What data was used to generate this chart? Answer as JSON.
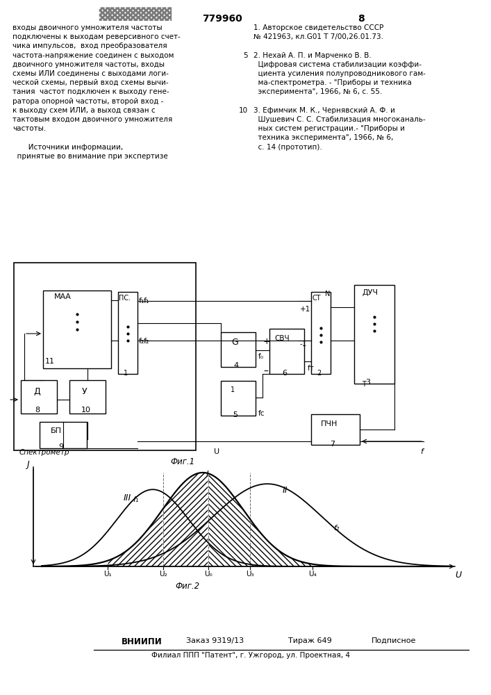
{
  "page_number": "779960",
  "page_num_right": "8",
  "left_text": [
    "входы двоичного умножителя частоты",
    "подключены к выходам реверсивного счет-",
    "чика импульсов,  вход преобразователя",
    "частота-напряжение соединен с выходом",
    "двоичного умножителя частоты, входы",
    "схемы ИЛИ соединены с выходами логи-",
    "ческой схемы, первый вход схемы вычи-",
    "тания  частот подключен к выходу гене-",
    "ратора опорной частоты, второй вход -",
    "к выходу схем ИЛИ, а выход связан с",
    "тактовым входом двоичного умножителя",
    "частоты.",
    "",
    "       Источники информации,",
    "  принятые во внимание при экспертизе"
  ],
  "right_lines": [
    "1. Авторское свидетельство СССР",
    "№ 421963, кл.G01 T 7/00,26.01.73.",
    "",
    "2. Нехай А. П. и Марченко В. В.",
    "Цифровая система стабилизации коэффи-",
    "циента усиления полупроводникового гам-",
    "ма-спектрометра. - \"Приборы и техника",
    "эксперимента\", 1966, № 6, с. 55.",
    "",
    "3. Ефимчик М. К., Чернявский А. Ф. и",
    "Шушевич С. С. Стабилизация многоканаль-",
    "ных систем регистрации.- \"Приборы и",
    "техника эксперимента\", 1966, № 6,",
    "с. 14 (прототип)."
  ],
  "line_markers": [
    3,
    9
  ],
  "line_marker_labels": [
    "5",
    "10"
  ],
  "fig1_label": "Фиг.1",
  "fig2_label": "Фиг.2",
  "spectrometer_label": "Спектрометр",
  "footer_vniipи": "ВНИИПИ",
  "footer_order": "Заказ 9319/13",
  "footer_tirazh": "Тираж 649",
  "footer_podpisnoe": "Подписное",
  "footer_filial": "Филиал ППП \"Патент\", г. Ужгород, ул. Проектная, 4",
  "graph_ylabel": "J",
  "graph_xlabel": "U"
}
